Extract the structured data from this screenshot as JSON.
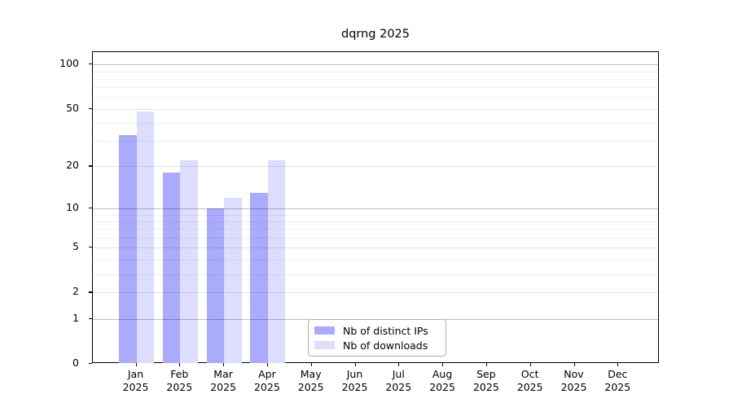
{
  "chart_data": {
    "type": "bar",
    "title": "dqrng 2025",
    "categories": [
      "Jan",
      "Feb",
      "Mar",
      "Apr",
      "May",
      "Jun",
      "Jul",
      "Aug",
      "Sep",
      "Oct",
      "Nov",
      "Dec"
    ],
    "x_label_second_line": "2025",
    "series": [
      {
        "name": "Nb of distinct IPs",
        "color": "#aaaaff",
        "values": [
          33,
          18,
          10,
          13,
          null,
          null,
          null,
          null,
          null,
          null,
          null,
          null
        ]
      },
      {
        "name": "Nb of downloads",
        "color": "#ddddff",
        "values": [
          48,
          22,
          12,
          22,
          null,
          null,
          null,
          null,
          null,
          null,
          null,
          null
        ]
      }
    ],
    "y_axis": {
      "scale": "log1p",
      "ticks": [
        0,
        1,
        2,
        5,
        10,
        20,
        50,
        100
      ],
      "major_gridlines": [
        1,
        10,
        100
      ],
      "mid_gridlines": [
        2,
        5,
        20,
        50
      ],
      "minor_gridlines": [
        3,
        4,
        6,
        7,
        8,
        9,
        30,
        40,
        60,
        70,
        80,
        90
      ],
      "ylim": [
        0,
        100
      ]
    },
    "grid": true,
    "legend": {
      "position": "bottom-center-inside",
      "entries": [
        "Nb of distinct IPs",
        "Nb of downloads"
      ]
    }
  }
}
